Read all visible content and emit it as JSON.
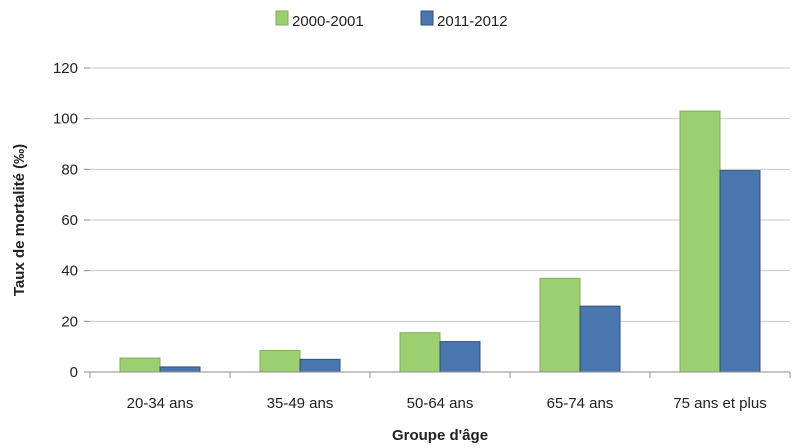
{
  "chart_data": {
    "type": "bar",
    "categories": [
      "20-34 ans",
      "35-49 ans",
      "50-64 ans",
      "65-74 ans",
      "75 ans et plus"
    ],
    "series": [
      {
        "name": "2000-2001",
        "values": [
          5.5,
          8.5,
          15.5,
          37,
          103
        ],
        "color": "#9bd070"
      },
      {
        "name": "2011-2012",
        "values": [
          2,
          5,
          12,
          26,
          79.5
        ],
        "color": "#4a76b0"
      }
    ],
    "title": "",
    "xlabel": "Groupe d'âge",
    "ylabel": "Taux de mortalité (‰)",
    "ylim": [
      0,
      120
    ],
    "yticks": [
      "0",
      "20",
      "40",
      "60",
      "80",
      "100",
      "120"
    ],
    "grid": true,
    "legend": "top-center"
  }
}
